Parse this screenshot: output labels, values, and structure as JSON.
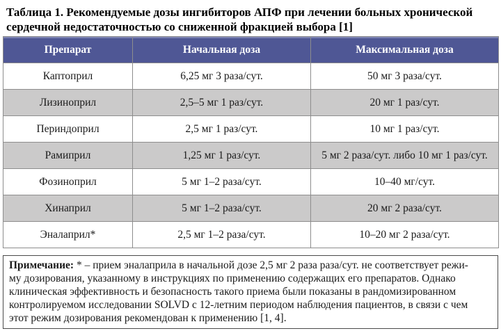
{
  "title": {
    "line1": "Таблица 1. Рекомендуемые дозы ингибиторов АПФ при лечении больных хронической",
    "line2": "сердечной недостаточностью со сниженной фракцией выбора [1]"
  },
  "table": {
    "headers": [
      "Препарат",
      "Начальная доза",
      "Максимальная доза"
    ],
    "rows": [
      {
        "drug": "Каптоприл",
        "initial_dose": "6,25 мг 3 раза/сут.",
        "max_dose": "50 мг 3 раза/сут."
      },
      {
        "drug": "Лизиноприл",
        "initial_dose": "2,5–5 мг 1 раз/сут.",
        "max_dose": "20 мг 1 раз/сут."
      },
      {
        "drug": "Периндоприл",
        "initial_dose": "2,5 мг 1 раз/сут.",
        "max_dose": "10 мг 1 раз/сут."
      },
      {
        "drug": "Рамиприл",
        "initial_dose": "1,25 мг 1 раз/сут.",
        "max_dose": "5 мг 2 раза/сут. либо 10 мг 1 раз/сут."
      },
      {
        "drug": "Фозиноприл",
        "initial_dose": "5 мг 1–2 раза/сут.",
        "max_dose": "10–40 мг/сут."
      },
      {
        "drug": "Хинаприл",
        "initial_dose": "5 мг 1–2 раза/сут.",
        "max_dose": "20 мг 2 раза/сут."
      },
      {
        "drug": "Эналаприл*",
        "initial_dose": "2,5 мг 1–2 раза/сут.",
        "max_dose": "10–20 мг 2 раза/сут."
      }
    ]
  },
  "note": {
    "label": "Примечание:",
    "lines": [
      " * – прием эналаприла в начальной дозе 2,5 мг 2 раза раза/сут. не соответствует режи-",
      "му дозирования, указанному в инструкциях по применению содержащих его препаратов. Однако",
      "клиническая эффективность и безопасность такого приема были показаны в рандомизированном",
      "контролируемом исследовании SOLVD с 12-летним периодом наблюдения пациентов, в связи с чем",
      "этот режим дозирования рекомендован к применению [1, 4]."
    ]
  },
  "colors": {
    "header_bg": "#4f5795",
    "row_alt_bg": "#cbcaca",
    "header_text": "#ffffff",
    "cell_border": "#8d8d8d",
    "note_border": "#4a4a4a"
  }
}
